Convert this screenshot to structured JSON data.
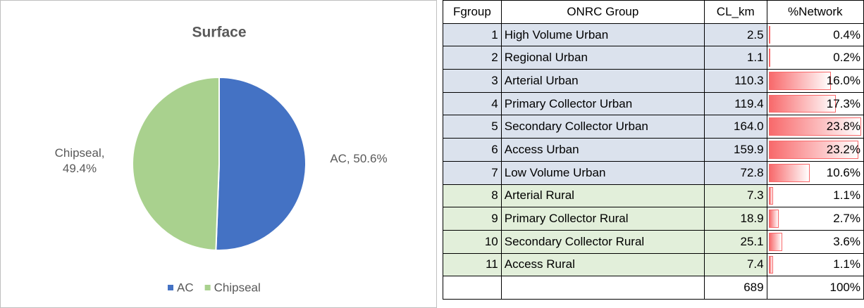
{
  "chart_data": {
    "type": "pie",
    "title": "Surface",
    "categories": [
      "AC",
      "Chipseal"
    ],
    "values": [
      50.6,
      49.4
    ],
    "value_labels": [
      "AC, 50.6%",
      "Chipseal, 49.4%"
    ],
    "colors": [
      "#4472c4",
      "#a9d18e"
    ],
    "legend": "bottom"
  },
  "table": {
    "header": [
      "Fgroup",
      "ONRC Group",
      "CL_km",
      "%Network"
    ],
    "rows": [
      [
        1,
        "High Volume Urban",
        "2.5",
        "0.4%"
      ],
      [
        2,
        "Regional Urban",
        "1.1",
        "0.2%"
      ],
      [
        3,
        "Arterial Urban",
        "110.3",
        "16.0%"
      ],
      [
        4,
        "Primary Collector Urban",
        "119.4",
        "17.3%"
      ],
      [
        5,
        "Secondary Collector Urban",
        "164.0",
        "23.8%"
      ],
      [
        6,
        "Access Urban",
        "159.9",
        "23.2%"
      ],
      [
        7,
        "Low Volume Urban",
        "72.8",
        "10.6%"
      ],
      [
        8,
        "Arterial Rural",
        "7.3",
        "1.1%"
      ],
      [
        9,
        "Primary Collector Rural",
        "18.9",
        "2.7%"
      ],
      [
        10,
        "Secondary Collector Rural",
        "25.1",
        "3.6%"
      ],
      [
        11,
        "Access Rural",
        "7.4",
        "1.1%"
      ]
    ],
    "row_colors": [
      "#dbe2ed",
      "#dbe2ed",
      "#dbe2ed",
      "#dbe2ed",
      "#dbe2ed",
      "#dbe2ed",
      "#dbe2ed",
      "#e2efda",
      "#e2efda",
      "#e2efda",
      "#e2efda"
    ],
    "total": {
      "cl_km": "689",
      "network": "100%"
    },
    "bar_color": "#f8696b"
  }
}
